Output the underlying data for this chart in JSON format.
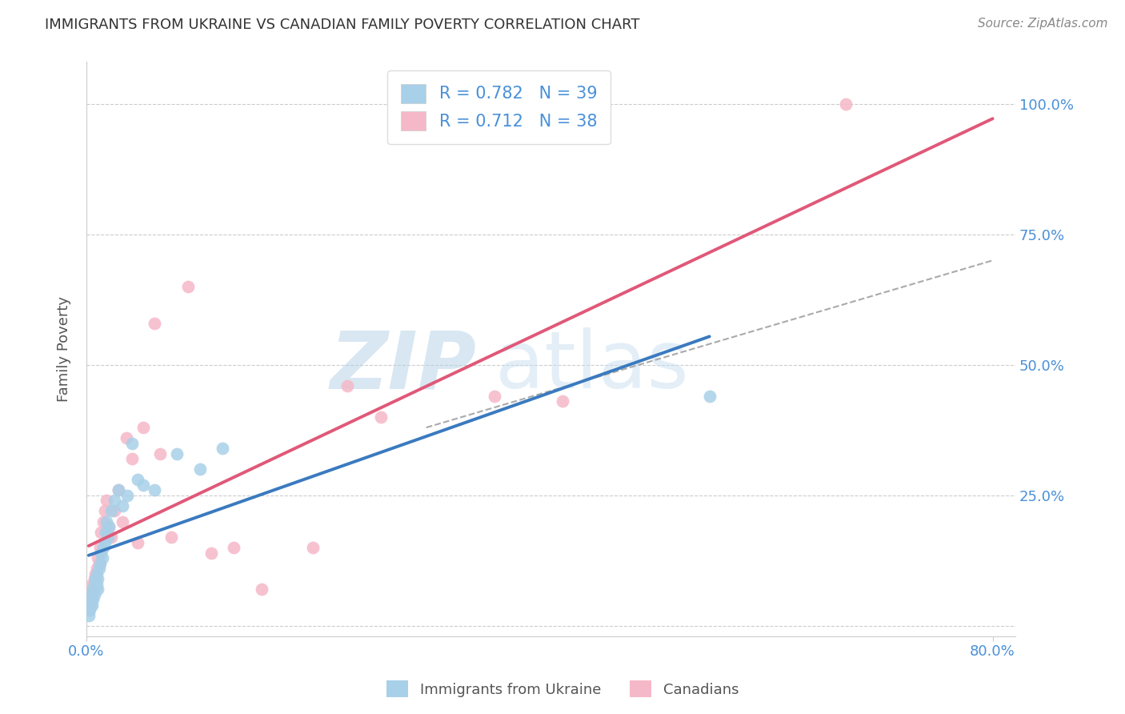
{
  "title": "IMMIGRANTS FROM UKRAINE VS CANADIAN FAMILY POVERTY CORRELATION CHART",
  "source": "Source: ZipAtlas.com",
  "ylabel": "Family Poverty",
  "xlim": [
    0.0,
    0.82
  ],
  "ylim": [
    -0.02,
    1.08
  ],
  "xticks": [
    0.0,
    0.8
  ],
  "xticklabels": [
    "0.0%",
    "80.0%"
  ],
  "yticks": [
    0.0,
    0.25,
    0.5,
    0.75,
    1.0
  ],
  "yticklabels": [
    "",
    "25.0%",
    "50.0%",
    "75.0%",
    "100.0%"
  ],
  "R_ukraine": 0.782,
  "N_ukraine": 39,
  "R_canadians": 0.712,
  "N_canadians": 38,
  "ukraine_color": "#a8d0e8",
  "canadian_color": "#f5b8c8",
  "ukraine_line_color": "#3a7abf",
  "canadian_line_color": "#e05878",
  "grid_color": "#cccccc",
  "title_color": "#333333",
  "axis_label_color": "#555555",
  "tick_color": "#4a90d9",
  "watermark_color": "#d0e8f5",
  "ukraine_scatter_x": [
    0.002,
    0.003,
    0.004,
    0.004,
    0.005,
    0.005,
    0.006,
    0.006,
    0.007,
    0.007,
    0.008,
    0.008,
    0.009,
    0.009,
    0.01,
    0.01,
    0.011,
    0.012,
    0.013,
    0.014,
    0.015,
    0.016,
    0.017,
    0.018,
    0.019,
    0.02,
    0.022,
    0.025,
    0.028,
    0.032,
    0.036,
    0.04,
    0.045,
    0.05,
    0.06,
    0.08,
    0.1,
    0.12,
    0.55
  ],
  "ukraine_scatter_y": [
    0.02,
    0.03,
    0.04,
    0.05,
    0.04,
    0.06,
    0.05,
    0.07,
    0.06,
    0.08,
    0.07,
    0.09,
    0.08,
    0.1,
    0.07,
    0.09,
    0.11,
    0.12,
    0.14,
    0.13,
    0.15,
    0.16,
    0.18,
    0.2,
    0.17,
    0.19,
    0.22,
    0.24,
    0.26,
    0.23,
    0.25,
    0.35,
    0.28,
    0.27,
    0.26,
    0.33,
    0.3,
    0.34,
    0.44
  ],
  "canadian_scatter_x": [
    0.002,
    0.003,
    0.004,
    0.005,
    0.005,
    0.006,
    0.007,
    0.008,
    0.009,
    0.01,
    0.011,
    0.012,
    0.013,
    0.015,
    0.016,
    0.018,
    0.02,
    0.022,
    0.025,
    0.028,
    0.032,
    0.035,
    0.04,
    0.045,
    0.05,
    0.06,
    0.065,
    0.075,
    0.09,
    0.11,
    0.13,
    0.155,
    0.2,
    0.23,
    0.26,
    0.36,
    0.42,
    0.67
  ],
  "canadian_scatter_y": [
    0.03,
    0.04,
    0.05,
    0.06,
    0.08,
    0.07,
    0.09,
    0.1,
    0.11,
    0.13,
    0.12,
    0.15,
    0.18,
    0.2,
    0.22,
    0.24,
    0.19,
    0.17,
    0.22,
    0.26,
    0.2,
    0.36,
    0.32,
    0.16,
    0.38,
    0.58,
    0.33,
    0.17,
    0.65,
    0.14,
    0.15,
    0.07,
    0.15,
    0.46,
    0.4,
    0.44,
    0.43,
    1.0
  ],
  "ukraine_line_x0": 0.002,
  "ukraine_line_x1": 0.55,
  "canadian_line_x0": 0.002,
  "canadian_line_x1": 0.8,
  "diag_line_x0": 0.3,
  "diag_line_x1": 0.8,
  "diag_line_y0": 0.38,
  "diag_line_y1": 0.7
}
